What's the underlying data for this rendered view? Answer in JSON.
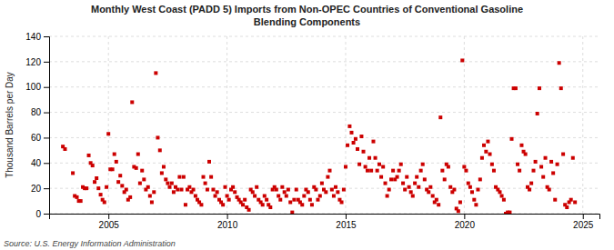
{
  "chart_data": {
    "type": "scatter",
    "title": "Monthly West Coast (PADD 5) Imports from Non-OPEC Countries of Conventional Gasoline\nBlending Components",
    "ylabel": "Thousand Barrels per Day",
    "source": "Source: U.S. Energy Information Administration",
    "color": "#cc0000",
    "marker": "square",
    "grid": true,
    "xlim": [
      2002.5,
      2025.7
    ],
    "ylim": [
      0,
      140
    ],
    "xticks": [
      2005,
      2010,
      2015,
      2020,
      2025
    ],
    "yticks": [
      0,
      20,
      40,
      60,
      80,
      100,
      120,
      140
    ],
    "x": [
      2003.08,
      2003.17,
      2003.5,
      2003.58,
      2003.67,
      2003.75,
      2003.83,
      2003.92,
      2004.0,
      2004.08,
      2004.17,
      2004.25,
      2004.33,
      2004.42,
      2004.5,
      2004.58,
      2004.67,
      2004.75,
      2004.83,
      2004.92,
      2005.0,
      2005.08,
      2005.17,
      2005.25,
      2005.33,
      2005.42,
      2005.5,
      2005.58,
      2005.67,
      2005.75,
      2005.83,
      2005.92,
      2006.0,
      2006.08,
      2006.17,
      2006.25,
      2006.33,
      2006.42,
      2006.5,
      2006.58,
      2006.67,
      2006.75,
      2006.83,
      2006.92,
      2007.0,
      2007.08,
      2007.17,
      2007.25,
      2007.33,
      2007.42,
      2007.5,
      2007.58,
      2007.67,
      2007.75,
      2007.83,
      2007.92,
      2008.0,
      2008.08,
      2008.17,
      2008.25,
      2008.33,
      2008.42,
      2008.5,
      2008.58,
      2008.67,
      2008.75,
      2008.83,
      2008.92,
      2009.0,
      2009.08,
      2009.17,
      2009.25,
      2009.33,
      2009.42,
      2009.5,
      2009.58,
      2009.67,
      2009.75,
      2009.83,
      2009.92,
      2010.0,
      2010.08,
      2010.17,
      2010.25,
      2010.33,
      2010.42,
      2010.5,
      2010.58,
      2010.67,
      2010.75,
      2010.83,
      2010.92,
      2011.0,
      2011.08,
      2011.17,
      2011.25,
      2011.33,
      2011.42,
      2011.5,
      2011.58,
      2011.67,
      2011.75,
      2011.83,
      2011.92,
      2012.0,
      2012.08,
      2012.17,
      2012.25,
      2012.33,
      2012.42,
      2012.5,
      2012.58,
      2012.67,
      2012.75,
      2012.83,
      2012.92,
      2013.0,
      2013.08,
      2013.17,
      2013.25,
      2013.33,
      2013.42,
      2013.5,
      2013.58,
      2013.67,
      2013.75,
      2013.83,
      2013.92,
      2014.0,
      2014.08,
      2014.17,
      2014.25,
      2014.33,
      2014.42,
      2014.5,
      2014.58,
      2014.67,
      2014.75,
      2014.83,
      2014.92,
      2015.0,
      2015.08,
      2015.17,
      2015.25,
      2015.33,
      2015.42,
      2015.5,
      2015.58,
      2015.67,
      2015.75,
      2015.83,
      2015.92,
      2016.0,
      2016.08,
      2016.17,
      2016.25,
      2016.33,
      2016.42,
      2016.5,
      2016.58,
      2016.67,
      2016.75,
      2016.83,
      2016.92,
      2017.0,
      2017.08,
      2017.17,
      2017.25,
      2017.33,
      2017.42,
      2017.5,
      2017.58,
      2017.67,
      2017.75,
      2017.83,
      2017.92,
      2018.0,
      2018.08,
      2018.17,
      2018.25,
      2018.33,
      2018.42,
      2018.5,
      2018.58,
      2018.67,
      2018.75,
      2018.83,
      2018.92,
      2019.0,
      2019.08,
      2019.17,
      2019.25,
      2019.33,
      2019.42,
      2019.5,
      2019.58,
      2019.67,
      2019.75,
      2019.83,
      2019.92,
      2020.0,
      2020.08,
      2020.17,
      2020.25,
      2020.33,
      2020.42,
      2020.5,
      2020.58,
      2020.67,
      2020.75,
      2020.83,
      2020.92,
      2021.0,
      2021.08,
      2021.17,
      2021.25,
      2021.33,
      2021.42,
      2021.5,
      2021.58,
      2021.67,
      2021.75,
      2021.83,
      2021.92,
      2022.0,
      2022.08,
      2022.17,
      2022.25,
      2022.33,
      2022.42,
      2022.5,
      2022.58,
      2022.67,
      2022.75,
      2022.83,
      2022.92,
      2023.0,
      2023.08,
      2023.17,
      2023.25,
      2023.33,
      2023.42,
      2023.5,
      2023.58,
      2023.67,
      2023.75,
      2023.83,
      2023.92,
      2024.0,
      2024.08,
      2024.17,
      2024.25,
      2024.33,
      2024.42,
      2024.5,
      2024.58,
      2024.67
    ],
    "values": [
      53,
      51,
      32,
      14,
      13,
      10,
      10,
      21,
      20,
      20,
      46,
      40,
      38,
      25,
      28,
      20,
      15,
      11,
      9,
      21,
      63,
      35,
      35,
      47,
      41,
      25,
      30,
      22,
      17,
      19,
      11,
      13,
      88,
      37,
      36,
      47,
      24,
      34,
      27,
      19,
      21,
      14,
      9,
      17,
      111,
      60,
      50,
      32,
      37,
      27,
      24,
      21,
      24,
      17,
      21,
      19,
      29,
      19,
      29,
      7,
      19,
      21,
      17,
      19,
      14,
      11,
      9,
      7,
      29,
      24,
      19,
      41,
      29,
      19,
      14,
      17,
      11,
      9,
      7,
      21,
      14,
      11,
      19,
      21,
      17,
      13,
      11,
      9,
      7,
      11,
      5,
      3,
      19,
      17,
      14,
      21,
      11,
      9,
      7,
      14,
      11,
      7,
      5,
      19,
      21,
      19,
      14,
      11,
      21,
      17,
      14,
      19,
      9,
      1,
      11,
      19,
      11,
      9,
      7,
      14,
      19,
      17,
      11,
      7,
      21,
      19,
      11,
      14,
      24,
      19,
      17,
      29,
      34,
      19,
      14,
      21,
      17,
      11,
      9,
      19,
      37,
      54,
      69,
      64,
      56,
      59,
      51,
      39,
      61,
      49,
      37,
      34,
      44,
      34,
      57,
      44,
      34,
      39,
      29,
      37,
      24,
      14,
      19,
      27,
      34,
      27,
      29,
      34,
      39,
      24,
      19,
      29,
      21,
      17,
      14,
      24,
      29,
      21,
      34,
      39,
      27,
      19,
      17,
      21,
      14,
      9,
      11,
      7,
      76,
      34,
      27,
      39,
      37,
      21,
      17,
      19,
      4,
      2,
      9,
      121,
      37,
      34,
      24,
      21,
      17,
      11,
      7,
      19,
      27,
      44,
      54,
      49,
      57,
      47,
      39,
      34,
      21,
      19,
      17,
      14,
      11,
      0,
      1,
      1,
      59,
      99,
      99,
      39,
      34,
      54,
      49,
      47,
      21,
      19,
      24,
      34,
      41,
      79,
      99,
      37,
      29,
      44,
      21,
      19,
      41,
      32,
      11,
      39,
      119,
      99,
      47,
      7,
      5,
      9,
      11,
      44,
      9
    ]
  }
}
